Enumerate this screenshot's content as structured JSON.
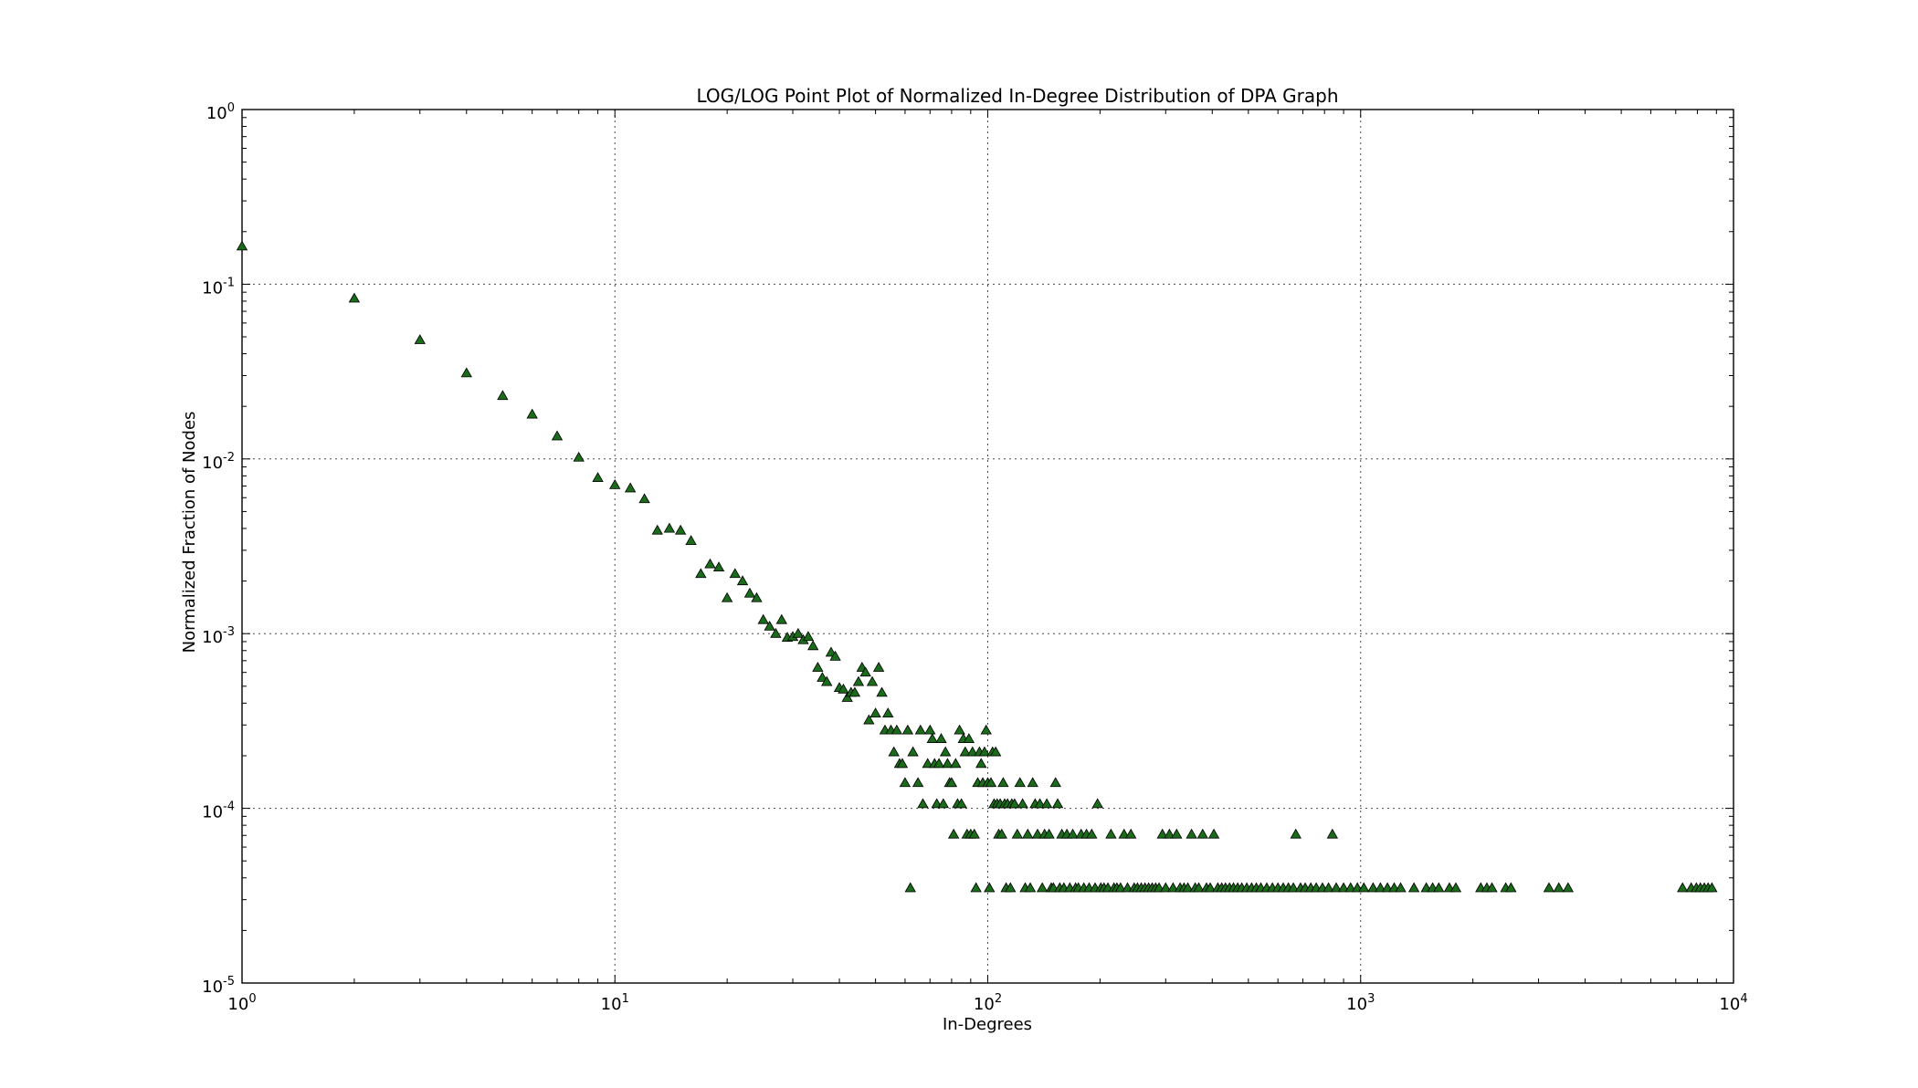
{
  "chart_data": {
    "type": "scatter",
    "title": "LOG/LOG Point Plot of Normalized In-Degree Distribution of DPA Graph",
    "xlabel": "In-Degrees",
    "ylabel": "Normalized Fraction of Nodes",
    "xscale": "log",
    "yscale": "log",
    "xlim": [
      1,
      10000
    ],
    "ylim": [
      1e-05,
      1
    ],
    "grid": true,
    "marker": "triangle-up",
    "marker_color": "#1a6b1a",
    "x_ticks": [
      {
        "value": 1,
        "base": "10",
        "exp": "0"
      },
      {
        "value": 10,
        "base": "10",
        "exp": "1"
      },
      {
        "value": 100,
        "base": "10",
        "exp": "2"
      },
      {
        "value": 1000,
        "base": "10",
        "exp": "3"
      },
      {
        "value": 10000,
        "base": "10",
        "exp": "4"
      }
    ],
    "y_ticks": [
      {
        "value": 1,
        "base": "10",
        "exp": "0"
      },
      {
        "value": 0.1,
        "base": "10",
        "exp": "-1"
      },
      {
        "value": 0.01,
        "base": "10",
        "exp": "-2"
      },
      {
        "value": 0.001,
        "base": "10",
        "exp": "-3"
      },
      {
        "value": 0.0001,
        "base": "10",
        "exp": "-4"
      },
      {
        "value": 1e-05,
        "base": "10",
        "exp": "-5"
      }
    ],
    "series": [
      {
        "points": [
          [
            1,
            0.165
          ],
          [
            2,
            0.083
          ],
          [
            3,
            0.048
          ],
          [
            4,
            0.031
          ],
          [
            5,
            0.023
          ],
          [
            6,
            0.018
          ],
          [
            7,
            0.0135
          ],
          [
            8,
            0.0102
          ],
          [
            9,
            0.0078
          ],
          [
            10,
            0.0071
          ],
          [
            11,
            0.0068
          ],
          [
            12,
            0.0059
          ],
          [
            13,
            0.0039
          ],
          [
            14,
            0.004
          ],
          [
            15,
            0.0039
          ],
          [
            16,
            0.0034
          ],
          [
            17,
            0.0022
          ],
          [
            18,
            0.0025
          ],
          [
            19,
            0.0024
          ],
          [
            20,
            0.0016
          ],
          [
            21,
            0.0022
          ],
          [
            22,
            0.002
          ],
          [
            23,
            0.0017
          ],
          [
            24,
            0.0016
          ],
          [
            25,
            0.0012
          ],
          [
            26,
            0.0011
          ],
          [
            27,
            0.001
          ],
          [
            28,
            0.0012
          ],
          [
            29,
            0.00095
          ],
          [
            30,
            0.00096
          ],
          [
            31,
            0.001
          ],
          [
            32,
            0.00092
          ],
          [
            33,
            0.00096
          ],
          [
            34,
            0.00085
          ],
          [
            35,
            0.00064
          ],
          [
            36,
            0.00056
          ],
          [
            37,
            0.00053
          ],
          [
            38,
            0.00078
          ],
          [
            39,
            0.00074
          ],
          [
            40,
            0.00049
          ],
          [
            41,
            0.00048
          ],
          [
            42,
            0.00043
          ],
          [
            43,
            0.00046
          ],
          [
            44,
            0.00046
          ],
          [
            45,
            0.00053
          ],
          [
            46,
            0.00064
          ],
          [
            47,
            0.0006
          ],
          [
            48,
            0.00032
          ],
          [
            49,
            0.00053
          ],
          [
            50,
            0.00035
          ],
          [
            51,
            0.00064
          ],
          [
            52,
            0.00046
          ],
          [
            53,
            0.00028
          ],
          [
            54,
            0.00035
          ],
          [
            55,
            0.00028
          ],
          [
            56,
            0.00021
          ],
          [
            57,
            0.00028
          ],
          [
            58,
            0.00018
          ],
          [
            59,
            0.00018
          ],
          [
            60,
            0.00014
          ],
          [
            61,
            0.00028
          ],
          [
            62,
            3.5e-05
          ],
          [
            63,
            0.00021
          ],
          [
            65,
            0.00014
          ],
          [
            66,
            0.00028
          ],
          [
            67,
            0.000106
          ],
          [
            69,
            0.00018
          ],
          [
            70,
            0.00028
          ],
          [
            71,
            0.00025
          ],
          [
            72,
            0.00018
          ],
          [
            73,
            0.000106
          ],
          [
            74,
            0.00018
          ],
          [
            75,
            0.00025
          ],
          [
            76,
            0.000106
          ],
          [
            77,
            0.00021
          ],
          [
            78,
            0.00018
          ],
          [
            79,
            0.00014
          ],
          [
            80,
            0.00014
          ],
          [
            81,
            7.1e-05
          ],
          [
            82,
            0.00018
          ],
          [
            83,
            0.000106
          ],
          [
            84,
            0.00028
          ],
          [
            85,
            0.000106
          ],
          [
            86,
            0.00025
          ],
          [
            87,
            0.00021
          ],
          [
            88,
            7.1e-05
          ],
          [
            89,
            0.00025
          ],
          [
            90,
            7.1e-05
          ],
          [
            91,
            0.00021
          ],
          [
            92,
            7.1e-05
          ],
          [
            93,
            3.5e-05
          ],
          [
            94,
            0.00014
          ],
          [
            95,
            0.00021
          ],
          [
            96,
            0.00018
          ],
          [
            97,
            0.00014
          ],
          [
            98,
            0.00021
          ],
          [
            99,
            0.00028
          ],
          [
            100,
            0.00014
          ],
          [
            101,
            3.5e-05
          ],
          [
            102,
            0.00014
          ],
          [
            103,
            0.00021
          ],
          [
            104,
            0.000106
          ],
          [
            105,
            0.00021
          ],
          [
            106,
            0.000106
          ],
          [
            107,
            7.1e-05
          ],
          [
            108,
            0.000106
          ],
          [
            109,
            7.1e-05
          ],
          [
            110,
            0.00014
          ],
          [
            111,
            0.000106
          ],
          [
            112,
            3.5e-05
          ],
          [
            113,
            0.000106
          ],
          [
            115,
            3.5e-05
          ],
          [
            116,
            0.000106
          ],
          [
            118,
            0.000106
          ],
          [
            120,
            7.1e-05
          ],
          [
            122,
            0.00014
          ],
          [
            124,
            0.000106
          ],
          [
            126,
            3.5e-05
          ],
          [
            128,
            7.1e-05
          ],
          [
            130,
            3.5e-05
          ],
          [
            132,
            0.00014
          ],
          [
            134,
            0.000106
          ],
          [
            136,
            7.1e-05
          ],
          [
            138,
            0.000106
          ],
          [
            140,
            3.5e-05
          ],
          [
            142,
            7.1e-05
          ],
          [
            144,
            0.000106
          ],
          [
            146,
            7.1e-05
          ],
          [
            148,
            3.5e-05
          ],
          [
            150,
            3.5e-05
          ],
          [
            152,
            0.00014
          ],
          [
            154,
            0.000106
          ],
          [
            156,
            3.5e-05
          ],
          [
            158,
            7.1e-05
          ],
          [
            160,
            3.5e-05
          ],
          [
            163,
            7.1e-05
          ],
          [
            166,
            3.5e-05
          ],
          [
            169,
            7.1e-05
          ],
          [
            172,
            3.5e-05
          ],
          [
            175,
            3.5e-05
          ],
          [
            178,
            7.1e-05
          ],
          [
            181,
            3.5e-05
          ],
          [
            184,
            7.1e-05
          ],
          [
            187,
            3.5e-05
          ],
          [
            190,
            7.1e-05
          ],
          [
            194,
            3.5e-05
          ],
          [
            197,
            0.000106
          ],
          [
            201,
            3.5e-05
          ],
          [
            205,
            3.5e-05
          ],
          [
            210,
            3.5e-05
          ],
          [
            214,
            7.1e-05
          ],
          [
            218,
            3.5e-05
          ],
          [
            222,
            3.5e-05
          ],
          [
            227,
            3.5e-05
          ],
          [
            232,
            7.1e-05
          ],
          [
            237,
            3.5e-05
          ],
          [
            242,
            7.1e-05
          ],
          [
            247,
            3.5e-05
          ],
          [
            252,
            3.5e-05
          ],
          [
            258,
            3.5e-05
          ],
          [
            264,
            3.5e-05
          ],
          [
            270,
            3.5e-05
          ],
          [
            276,
            3.5e-05
          ],
          [
            282,
            3.5e-05
          ],
          [
            288,
            3.5e-05
          ],
          [
            294,
            7.1e-05
          ],
          [
            300,
            3.5e-05
          ],
          [
            307,
            7.1e-05
          ],
          [
            314,
            3.5e-05
          ],
          [
            321,
            7.1e-05
          ],
          [
            328,
            3.5e-05
          ],
          [
            336,
            3.5e-05
          ],
          [
            344,
            3.5e-05
          ],
          [
            352,
            7.1e-05
          ],
          [
            360,
            3.5e-05
          ],
          [
            368,
            3.5e-05
          ],
          [
            377,
            7.1e-05
          ],
          [
            386,
            3.5e-05
          ],
          [
            395,
            3.5e-05
          ],
          [
            404,
            7.1e-05
          ],
          [
            414,
            3.5e-05
          ],
          [
            424,
            3.5e-05
          ],
          [
            434,
            3.5e-05
          ],
          [
            445,
            3.5e-05
          ],
          [
            456,
            3.5e-05
          ],
          [
            468,
            3.5e-05
          ],
          [
            480,
            3.5e-05
          ],
          [
            495,
            3.5e-05
          ],
          [
            510,
            3.5e-05
          ],
          [
            525,
            3.5e-05
          ],
          [
            540,
            3.5e-05
          ],
          [
            560,
            3.5e-05
          ],
          [
            580,
            3.5e-05
          ],
          [
            600,
            3.5e-05
          ],
          [
            620,
            3.5e-05
          ],
          [
            640,
            3.5e-05
          ],
          [
            660,
            3.5e-05
          ],
          [
            670,
            7.1e-05
          ],
          [
            690,
            3.5e-05
          ],
          [
            710,
            3.5e-05
          ],
          [
            735,
            3.5e-05
          ],
          [
            760,
            3.5e-05
          ],
          [
            790,
            3.5e-05
          ],
          [
            820,
            3.5e-05
          ],
          [
            840,
            7.1e-05
          ],
          [
            860,
            3.5e-05
          ],
          [
            900,
            3.5e-05
          ],
          [
            940,
            3.5e-05
          ],
          [
            980,
            3.5e-05
          ],
          [
            1020,
            3.5e-05
          ],
          [
            1080,
            3.5e-05
          ],
          [
            1130,
            3.5e-05
          ],
          [
            1180,
            3.5e-05
          ],
          [
            1230,
            3.5e-05
          ],
          [
            1280,
            3.5e-05
          ],
          [
            1390,
            3.5e-05
          ],
          [
            1500,
            3.5e-05
          ],
          [
            1560,
            3.5e-05
          ],
          [
            1620,
            3.5e-05
          ],
          [
            1730,
            3.5e-05
          ],
          [
            1800,
            3.5e-05
          ],
          [
            2100,
            3.5e-05
          ],
          [
            2180,
            3.5e-05
          ],
          [
            2250,
            3.5e-05
          ],
          [
            2450,
            3.5e-05
          ],
          [
            2530,
            3.5e-05
          ],
          [
            3200,
            3.5e-05
          ],
          [
            3400,
            3.5e-05
          ],
          [
            3600,
            3.5e-05
          ],
          [
            7300,
            3.5e-05
          ],
          [
            7700,
            3.5e-05
          ],
          [
            7950,
            3.5e-05
          ],
          [
            8150,
            3.5e-05
          ],
          [
            8350,
            3.5e-05
          ],
          [
            8550,
            3.5e-05
          ],
          [
            8750,
            3.5e-05
          ]
        ]
      }
    ]
  }
}
